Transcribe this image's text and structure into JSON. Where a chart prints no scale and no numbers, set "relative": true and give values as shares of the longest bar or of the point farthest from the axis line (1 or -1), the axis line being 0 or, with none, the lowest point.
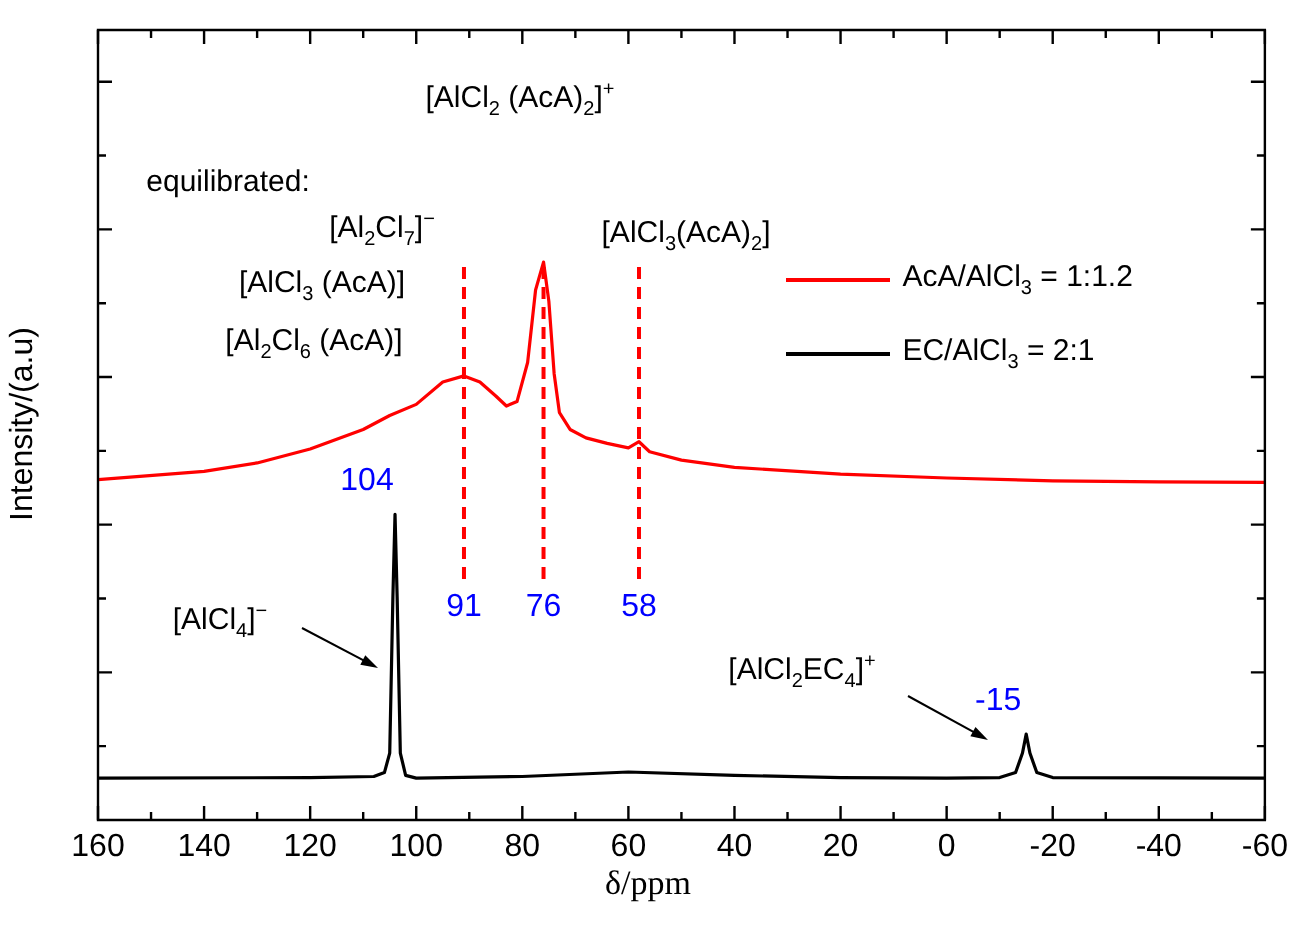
{
  "chart_data": {
    "type": "line",
    "xlabel": "δ/ppm",
    "ylabel": "Intensity/(a.u)",
    "relative": true,
    "xlim": [
      160,
      -60
    ],
    "xticks": [
      160,
      140,
      120,
      100,
      80,
      60,
      40,
      20,
      0,
      -20,
      -40,
      -60
    ],
    "grid": false,
    "legend": "right",
    "marker": "none",
    "line_style": "solid",
    "series": [
      {
        "name": "AcA/AlCl$_{3}$ = 1:1.2",
        "color": "#ff0000",
        "x": [
          160,
          140,
          130,
          120,
          110,
          105,
          100,
          95,
          91,
          88,
          85,
          83,
          81,
          79,
          77.5,
          76,
          75,
          74,
          73,
          71,
          68,
          64,
          60,
          58,
          56,
          50,
          40,
          20,
          0,
          -20,
          -40,
          -60
        ],
        "values": [
          0.61,
          0.625,
          0.64,
          0.665,
          0.7,
          0.725,
          0.745,
          0.785,
          0.796,
          0.785,
          0.76,
          0.742,
          0.75,
          0.82,
          0.95,
          1,
          0.93,
          0.8,
          0.73,
          0.7,
          0.685,
          0.675,
          0.667,
          0.678,
          0.66,
          0.645,
          0.632,
          0.62,
          0.613,
          0.608,
          0.606,
          0.605
        ]
      },
      {
        "name": "EC/AlCl$_{3}$ =  2:1",
        "color": "#000000",
        "x": [
          160,
          120,
          108,
          106,
          105,
          104.4,
          104,
          103.6,
          103,
          102,
          100,
          80,
          60,
          40,
          20,
          0,
          -10,
          -13,
          -14.3,
          -15,
          -15.7,
          -17,
          -20,
          -60
        ],
        "values": [
          0.075,
          0.076,
          0.078,
          0.085,
          0.12,
          0.4,
          0.548,
          0.4,
          0.12,
          0.08,
          0.075,
          0.078,
          0.086,
          0.08,
          0.076,
          0.075,
          0.076,
          0.085,
          0.12,
          0.154,
          0.12,
          0.085,
          0.076,
          0.075
        ]
      }
    ],
    "ref_lines": [
      {
        "axis": "x",
        "value": 91,
        "label": "91",
        "color": "#ff0000",
        "line_style": "dashed"
      },
      {
        "axis": "x",
        "value": 76,
        "label": "76",
        "color": "#ff0000",
        "line_style": "dashed"
      },
      {
        "axis": "x",
        "value": 58,
        "label": "58",
        "color": "#ff0000",
        "line_style": "dashed"
      }
    ],
    "annotations": [
      "equilibrated:",
      "[Al$_{2}$Cl$_{7}$]$^{−}$",
      "[AlCl$_{3}$ (AcA)]",
      "[Al$_{2}$Cl$_{6}$ (AcA)]",
      "[AlCl$_{2}$ (AcA)$_{2}$]$^{+}$",
      "[AlCl$_{3}$(AcA)$_{2}$]",
      "[AlCl$_{4}$]$^{−}$",
      "[AlCl$_{2}$EC$_{4}$]$^{+}$",
      {
        "text": "104",
        "x": 104,
        "y": 0.548
      },
      {
        "text": "-15",
        "x": -15,
        "y": 0.154
      }
    ]
  }
}
